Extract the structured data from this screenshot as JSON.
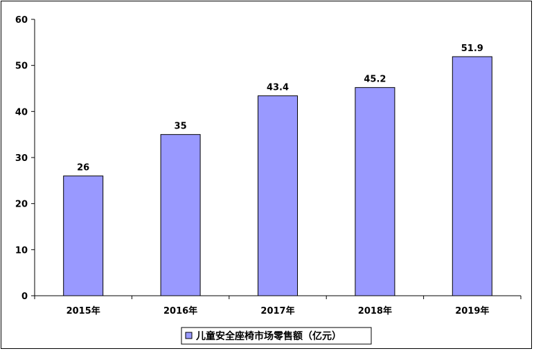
{
  "chart_data": {
    "type": "bar",
    "categories": [
      "2015年",
      "2016年",
      "2017年",
      "2018年",
      "2019年"
    ],
    "series": [
      {
        "name": "儿童安全座椅市场零售额（亿元）",
        "values": [
          26,
          35,
          43.4,
          45.2,
          51.9
        ],
        "value_labels": [
          "26",
          "35",
          "43.4",
          "45.2",
          "51.9"
        ],
        "color": "#9999ff"
      }
    ],
    "y_ticks": [
      "0",
      "10",
      "20",
      "30",
      "40",
      "50",
      "60"
    ],
    "ylim": [
      0,
      60
    ],
    "grid": false,
    "legend_position": "bottom"
  }
}
